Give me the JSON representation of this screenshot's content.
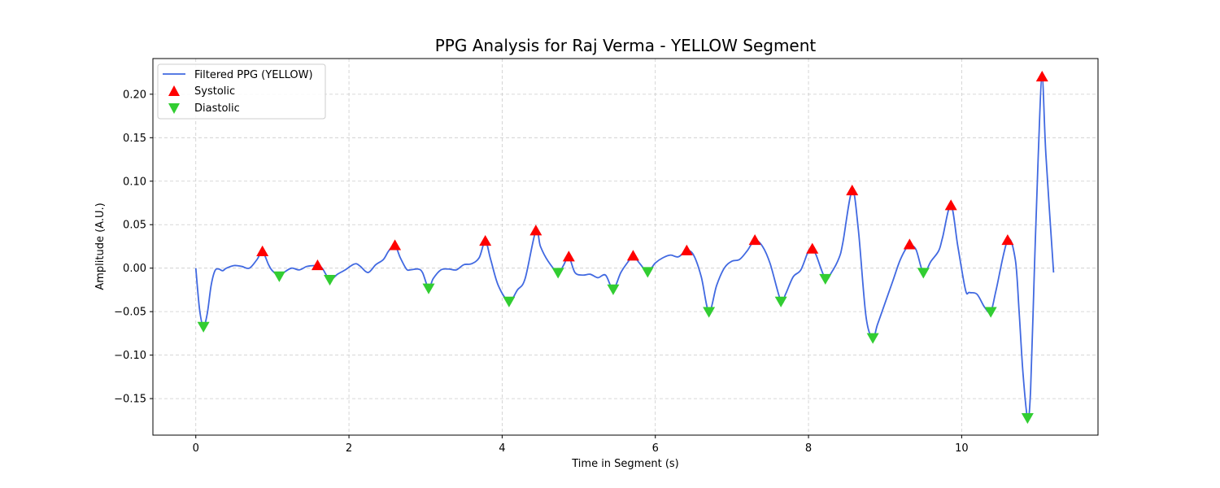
{
  "chart_data": {
    "type": "line",
    "title": "PPG Analysis for Raj Verma - YELLOW Segment",
    "xlabel": "Time in Segment (s)",
    "ylabel": "Amplitude (A.U.)",
    "xlim": [
      -0.56,
      11.78
    ],
    "ylim": [
      -0.192,
      0.241
    ],
    "xticks": [
      0,
      2,
      4,
      6,
      8,
      10
    ],
    "yticks": [
      -0.15,
      -0.1,
      -0.05,
      0.0,
      0.05,
      0.1,
      0.15,
      0.2
    ],
    "ytick_labels": [
      "−0.15",
      "−0.10",
      "−0.05",
      "0.00",
      "0.05",
      "0.10",
      "0.15",
      "0.20"
    ],
    "grid": true,
    "legend_position": "upper-left",
    "colors": {
      "line": "#4169e1",
      "systolic": "#ff0000",
      "diastolic": "#32cd32",
      "grid": "#cccccc"
    },
    "series": [
      {
        "name": "Filtered PPG (YELLOW)",
        "kind": "line",
        "x": [
          0.0,
          0.05,
          0.1,
          0.15,
          0.2,
          0.25,
          0.3,
          0.35,
          0.4,
          0.5,
          0.6,
          0.7,
          0.8,
          0.87,
          0.95,
          1.0,
          1.09,
          1.15,
          1.25,
          1.35,
          1.45,
          1.55,
          1.59,
          1.65,
          1.75,
          1.85,
          1.95,
          2.05,
          2.1,
          2.15,
          2.25,
          2.35,
          2.45,
          2.52,
          2.6,
          2.67,
          2.75,
          2.8,
          2.9,
          2.96,
          3.04,
          3.1,
          3.2,
          3.3,
          3.4,
          3.5,
          3.6,
          3.7,
          3.78,
          3.85,
          3.95,
          4.09,
          4.2,
          4.3,
          4.44,
          4.5,
          4.6,
          4.73,
          4.8,
          4.87,
          4.95,
          5.05,
          5.15,
          5.25,
          5.35,
          5.45,
          5.55,
          5.65,
          5.71,
          5.8,
          5.9,
          6.0,
          6.1,
          6.2,
          6.3,
          6.41,
          6.5,
          6.6,
          6.7,
          6.8,
          6.9,
          7.0,
          7.1,
          7.2,
          7.3,
          7.4,
          7.5,
          7.64,
          7.7,
          7.8,
          7.9,
          8.0,
          8.05,
          8.1,
          8.22,
          8.3,
          8.4,
          8.45,
          8.57,
          8.65,
          8.75,
          8.84,
          8.9,
          9.0,
          9.1,
          9.2,
          9.3,
          9.4,
          9.5,
          9.6,
          9.7,
          9.75,
          9.86,
          9.95,
          10.05,
          10.1,
          10.2,
          10.3,
          10.38,
          10.45,
          10.6,
          10.7,
          10.75,
          10.8,
          10.86,
          10.9,
          10.95,
          11.0,
          11.05,
          11.1,
          11.2
        ],
        "y": [
          0.0,
          -0.048,
          -0.067,
          -0.052,
          -0.02,
          -0.003,
          -0.001,
          -0.003,
          0.0,
          0.003,
          0.002,
          0.0,
          0.01,
          0.019,
          0.004,
          -0.003,
          -0.009,
          -0.005,
          0.0,
          -0.002,
          0.002,
          0.003,
          0.003,
          0.0,
          -0.013,
          -0.007,
          -0.002,
          0.004,
          0.005,
          0.002,
          -0.005,
          0.004,
          0.01,
          0.02,
          0.026,
          0.012,
          -0.001,
          -0.002,
          -0.001,
          -0.005,
          -0.023,
          -0.012,
          -0.002,
          -0.001,
          -0.002,
          0.004,
          0.005,
          0.012,
          0.031,
          0.01,
          -0.02,
          -0.038,
          -0.025,
          -0.012,
          0.043,
          0.025,
          0.008,
          -0.005,
          0.003,
          0.013,
          -0.005,
          -0.008,
          -0.007,
          -0.011,
          -0.008,
          -0.024,
          -0.005,
          0.008,
          0.014,
          0.005,
          -0.004,
          0.006,
          0.012,
          0.015,
          0.013,
          0.02,
          0.015,
          -0.01,
          -0.05,
          -0.02,
          0.0,
          0.008,
          0.01,
          0.02,
          0.032,
          0.025,
          0.005,
          -0.038,
          -0.03,
          -0.01,
          -0.002,
          0.02,
          0.022,
          0.015,
          -0.012,
          -0.005,
          0.012,
          0.03,
          0.089,
          0.045,
          -0.055,
          -0.08,
          -0.065,
          -0.04,
          -0.015,
          0.01,
          0.025,
          0.022,
          -0.005,
          0.008,
          0.02,
          0.035,
          0.072,
          0.025,
          -0.025,
          -0.028,
          -0.03,
          -0.045,
          -0.05,
          -0.025,
          0.032,
          0.01,
          -0.05,
          -0.12,
          -0.172,
          -0.14,
          0.0,
          0.13,
          0.22,
          0.13,
          -0.005
        ]
      },
      {
        "name": "Systolic",
        "kind": "marker-up",
        "x": [
          0.87,
          1.59,
          2.6,
          3.78,
          4.44,
          4.87,
          5.71,
          6.41,
          7.3,
          8.05,
          8.57,
          9.32,
          9.86,
          10.6,
          11.05
        ],
        "y": [
          0.019,
          0.003,
          0.026,
          0.031,
          0.043,
          0.013,
          0.014,
          0.02,
          0.032,
          0.022,
          0.089,
          0.027,
          0.072,
          0.032,
          0.22
        ]
      },
      {
        "name": "Diastolic",
        "kind": "marker-down",
        "x": [
          0.1,
          1.09,
          1.75,
          3.04,
          4.09,
          4.73,
          5.45,
          5.9,
          6.7,
          7.64,
          8.22,
          8.84,
          9.5,
          10.38,
          10.86
        ],
        "y": [
          -0.067,
          -0.009,
          -0.013,
          -0.023,
          -0.038,
          -0.005,
          -0.024,
          -0.004,
          -0.05,
          -0.038,
          -0.012,
          -0.08,
          -0.005,
          -0.05,
          -0.172
        ]
      }
    ]
  }
}
